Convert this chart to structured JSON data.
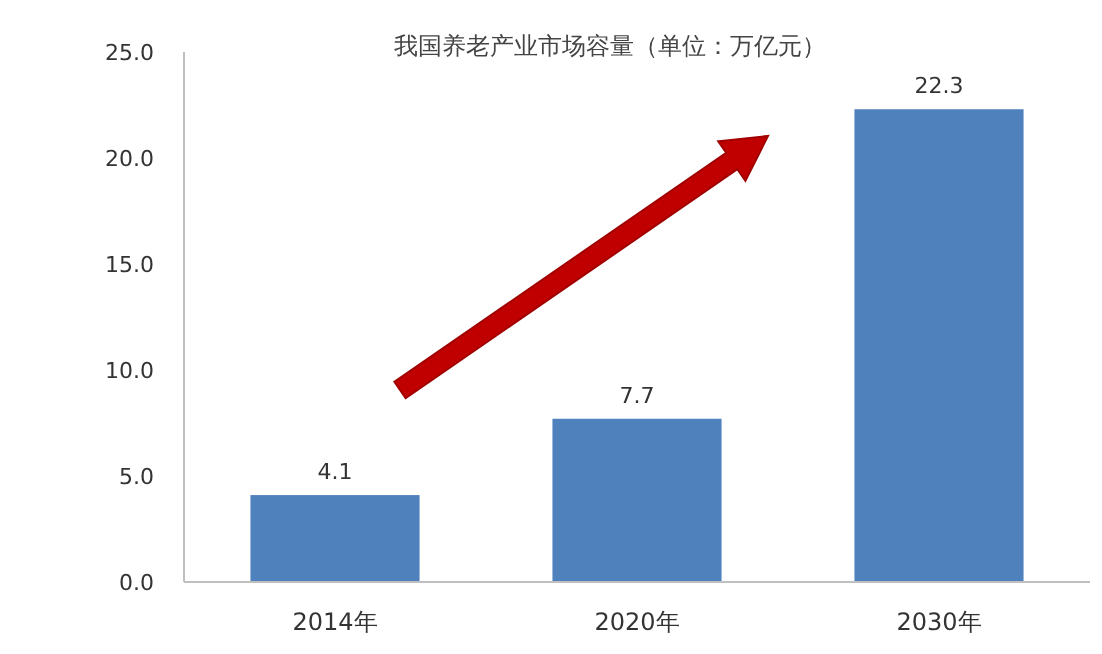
{
  "chart_data": {
    "type": "bar",
    "title": "我国养老产业市场容量（单位：万亿元）",
    "categories": [
      "2014年",
      "2020年",
      "2030年"
    ],
    "values": [
      4.1,
      7.7,
      22.3
    ],
    "color": "#4f81bd",
    "ylim": [
      0,
      25
    ],
    "yticks": [
      {
        "value": 0,
        "label": "0.0"
      },
      {
        "value": 5,
        "label": "5.0"
      },
      {
        "value": 10,
        "label": "10.0"
      },
      {
        "value": 15,
        "label": "15.0"
      },
      {
        "value": 20,
        "label": "20.0"
      },
      {
        "value": 25,
        "label": "25.0"
      }
    ],
    "data_labels": true
  }
}
